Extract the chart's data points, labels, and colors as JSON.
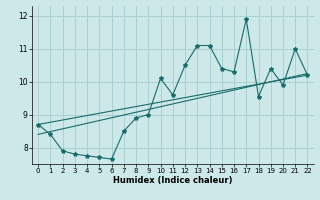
{
  "xlabel": "Humidex (Indice chaleur)",
  "background_color": "#cce8e8",
  "grid_color": "#aad0d0",
  "line_color": "#1a6b6b",
  "xlim": [
    -0.5,
    22.5
  ],
  "ylim": [
    7.5,
    12.3
  ],
  "xticks": [
    0,
    1,
    2,
    3,
    4,
    5,
    6,
    7,
    8,
    9,
    10,
    11,
    12,
    13,
    14,
    15,
    16,
    17,
    18,
    19,
    20,
    21,
    22
  ],
  "yticks": [
    8,
    9,
    10,
    11,
    12
  ],
  "series": [
    [
      0,
      8.7
    ],
    [
      1,
      8.4
    ],
    [
      2,
      7.9
    ],
    [
      3,
      7.8
    ],
    [
      4,
      7.75
    ],
    [
      5,
      7.7
    ],
    [
      6,
      7.65
    ],
    [
      7,
      8.5
    ],
    [
      8,
      8.9
    ],
    [
      9,
      9.0
    ],
    [
      10,
      10.1
    ],
    [
      11,
      9.6
    ],
    [
      12,
      10.5
    ],
    [
      13,
      11.1
    ],
    [
      14,
      11.1
    ],
    [
      15,
      10.4
    ],
    [
      16,
      10.3
    ],
    [
      17,
      11.9
    ],
    [
      18,
      9.55
    ],
    [
      19,
      10.4
    ],
    [
      20,
      9.9
    ],
    [
      21,
      11.0
    ],
    [
      22,
      10.2
    ]
  ],
  "line2": [
    [
      0,
      8.7
    ],
    [
      22,
      10.2
    ]
  ],
  "line3": [
    [
      0,
      8.4
    ],
    [
      22,
      10.25
    ]
  ]
}
